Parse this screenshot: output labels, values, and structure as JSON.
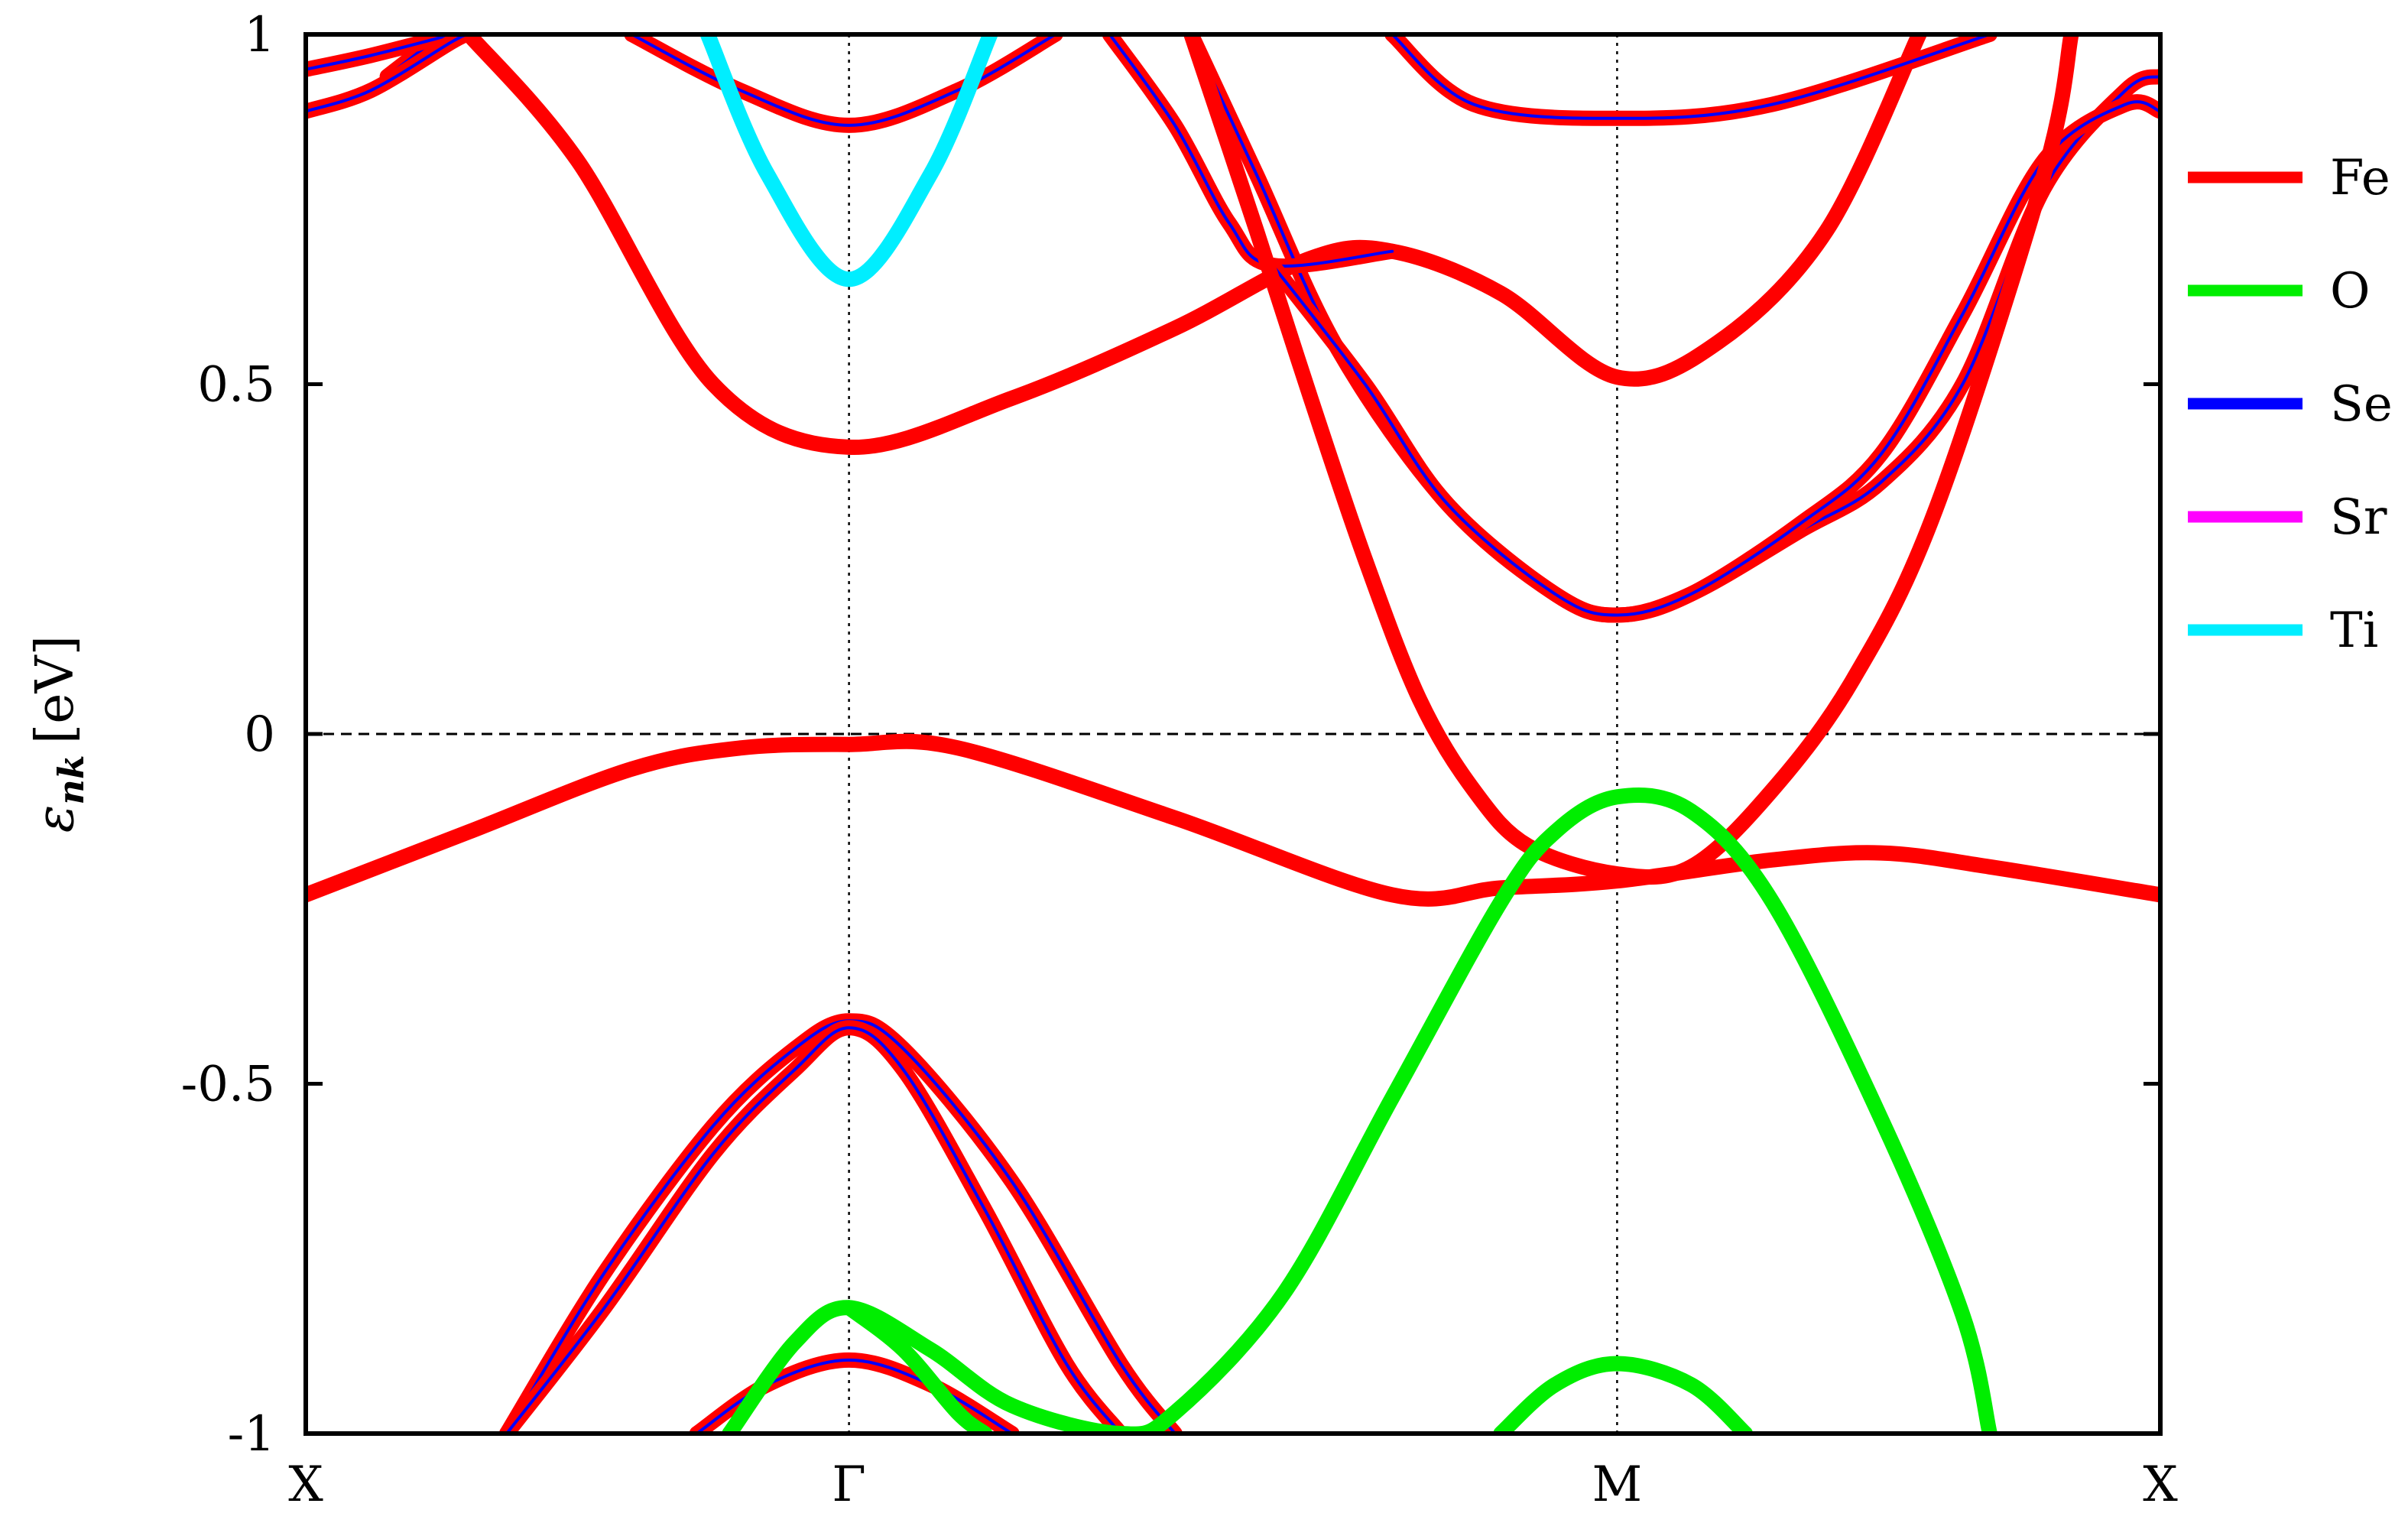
{
  "chart_data": {
    "type": "line",
    "ylabel": "ε_nk [eV]",
    "ylabel_main": "ε",
    "ylabel_sub": "nk",
    "ylabel_unit": "[eV]",
    "xlabel": "",
    "ylim": [
      -1,
      1
    ],
    "xlim": [
      0,
      3.414
    ],
    "x_ticks": [
      {
        "label": "X",
        "x": 0
      },
      {
        "label": "Γ",
        "x": 1
      },
      {
        "label": "M",
        "x": 2.414
      },
      {
        "label": "X",
        "x": 3.414
      }
    ],
    "y_ticks": [
      {
        "label": "1",
        "value": 1
      },
      {
        "label": "0.5",
        "value": 0.5
      },
      {
        "label": "0",
        "value": 0
      },
      {
        "label": "-0.5",
        "value": -0.5
      },
      {
        "label": "-1",
        "value": -1
      }
    ],
    "fermi_level": 0,
    "grid": "vertical dotted lines at high-symmetry points",
    "legend": {
      "placement": "right",
      "entries": [
        {
          "name": "Fe",
          "color": "#ff0000"
        },
        {
          "name": "O",
          "color": "#00ee00"
        },
        {
          "name": "Se",
          "color": "#0000ff"
        },
        {
          "name": "Sr",
          "color": "#ff00ff"
        },
        {
          "name": "Ti",
          "color": "#00eeff"
        }
      ]
    },
    "series": [
      {
        "element": "Fe",
        "color": "#ff0000",
        "inner": "#ff0000",
        "points": [
          [
            0,
            -0.23
          ],
          [
            0.3,
            -0.14
          ],
          [
            0.6,
            -0.05
          ],
          [
            0.8,
            -0.02
          ],
          [
            1,
            -0.015
          ],
          [
            1.2,
            -0.02
          ],
          [
            1.6,
            -0.12
          ],
          [
            2,
            -0.23
          ],
          [
            2.2,
            -0.22
          ],
          [
            2.414,
            -0.21
          ],
          [
            2.7,
            -0.18
          ],
          [
            2.9,
            -0.17
          ],
          [
            3.1,
            -0.19
          ],
          [
            3.414,
            -0.23
          ]
        ]
      },
      {
        "element": "Fe",
        "color": "#ff0000",
        "inner": "#ff0000",
        "points": [
          [
            0.3,
            1.0
          ],
          [
            0.5,
            0.82
          ],
          [
            0.75,
            0.5
          ],
          [
            1,
            0.41
          ],
          [
            1.3,
            0.48
          ],
          [
            1.6,
            0.58
          ],
          [
            1.85,
            0.68
          ],
          [
            2.0,
            0.69
          ],
          [
            2.2,
            0.63
          ],
          [
            2.414,
            0.51
          ],
          [
            2.6,
            0.56
          ],
          [
            2.8,
            0.72
          ],
          [
            2.97,
            1.0
          ]
        ]
      },
      {
        "element": "Fe",
        "color": "#ff0000",
        "inner": "#0000ff",
        "points": [
          [
            0.15,
            0.94
          ],
          [
            0.25,
            1.0
          ]
        ]
      },
      {
        "element": "Fe",
        "color": "#ff0000",
        "inner": "#0000ff",
        "points": [
          [
            0,
            0.95
          ],
          [
            0.12,
            0.97
          ],
          [
            0.27,
            1.0
          ]
        ]
      },
      {
        "element": "Fe",
        "color": "#ff0000",
        "inner": "#0000ff",
        "points": [
          [
            0,
            0.89
          ],
          [
            0.12,
            0.92
          ],
          [
            0.27,
            0.99
          ],
          [
            0.3,
            1.0
          ]
        ]
      },
      {
        "element": "Fe",
        "color": "#ff0000",
        "inner": "#0000ff",
        "points": [
          [
            0.6,
            1.0
          ],
          [
            0.8,
            0.92
          ],
          [
            1,
            0.87
          ],
          [
            1.2,
            0.92
          ],
          [
            1.38,
            1.0
          ]
        ]
      },
      {
        "element": "Fe",
        "color": "#ff0000",
        "inner": "#0000ff",
        "points": [
          [
            2.0,
            1.0
          ],
          [
            2.15,
            0.9
          ],
          [
            2.414,
            0.88
          ],
          [
            2.7,
            0.9
          ],
          [
            3.1,
            1.0
          ]
        ]
      },
      {
        "element": "Fe",
        "color": "#ff0000",
        "inner": "#0000ff",
        "points": [
          [
            1.63,
            1.0
          ],
          [
            1.75,
            0.8
          ],
          [
            1.9,
            0.55
          ],
          [
            2.1,
            0.33
          ],
          [
            2.3,
            0.2
          ],
          [
            2.414,
            0.17
          ],
          [
            2.55,
            0.2
          ],
          [
            2.75,
            0.29
          ],
          [
            2.9,
            0.36
          ],
          [
            3.05,
            0.5
          ],
          [
            3.2,
            0.78
          ],
          [
            3.35,
            0.92
          ],
          [
            3.414,
            0.94
          ]
        ]
      },
      {
        "element": "Fe",
        "color": "#ff0000",
        "inner": "#0000ff",
        "points": [
          [
            1.48,
            1.0
          ],
          [
            1.6,
            0.87
          ],
          [
            1.7,
            0.73
          ],
          [
            1.78,
            0.67
          ],
          [
            2.0,
            0.69
          ]
        ]
      },
      {
        "element": "Fe",
        "color": "#ff0000",
        "inner": "#0000ff",
        "points": [
          [
            1.78,
            0.67
          ],
          [
            1.95,
            0.5
          ],
          [
            2.1,
            0.33
          ],
          [
            2.3,
            0.2
          ],
          [
            2.414,
            0.17
          ],
          [
            2.55,
            0.2
          ],
          [
            2.75,
            0.3
          ],
          [
            2.9,
            0.4
          ],
          [
            3.05,
            0.6
          ],
          [
            3.2,
            0.82
          ],
          [
            3.35,
            0.9
          ],
          [
            3.414,
            0.89
          ]
        ]
      },
      {
        "element": "Fe",
        "color": "#ff0000",
        "inner": "#ff0000",
        "points": [
          [
            1.63,
            1.0
          ],
          [
            1.75,
            0.72
          ],
          [
            1.85,
            0.48
          ],
          [
            1.95,
            0.25
          ],
          [
            2.05,
            0.05
          ],
          [
            2.15,
            -0.08
          ],
          [
            2.25,
            -0.16
          ],
          [
            2.414,
            -0.2
          ],
          [
            2.55,
            -0.19
          ],
          [
            2.7,
            -0.08
          ],
          [
            2.85,
            0.08
          ],
          [
            3.0,
            0.32
          ],
          [
            3.2,
            0.8
          ],
          [
            3.25,
            1.0
          ]
        ]
      },
      {
        "element": "Fe",
        "color": "#ff0000",
        "inner": "#0000ff",
        "points": [
          [
            0.37,
            -1.0
          ],
          [
            0.55,
            -0.77
          ],
          [
            0.75,
            -0.56
          ],
          [
            0.9,
            -0.45
          ],
          [
            1,
            -0.41
          ],
          [
            1.1,
            -0.45
          ],
          [
            1.3,
            -0.64
          ],
          [
            1.5,
            -0.9
          ],
          [
            1.6,
            -1.0
          ]
        ]
      },
      {
        "element": "Fe",
        "color": "#ff0000",
        "inner": "#0000ff",
        "points": [
          [
            0.37,
            -1.0
          ],
          [
            0.55,
            -0.82
          ],
          [
            0.75,
            -0.6
          ],
          [
            0.9,
            -0.48
          ],
          [
            1,
            -0.42
          ],
          [
            1.1,
            -0.48
          ],
          [
            1.25,
            -0.68
          ],
          [
            1.4,
            -0.9
          ],
          [
            1.5,
            -1.0
          ]
        ]
      },
      {
        "element": "Fe",
        "color": "#ff0000",
        "inner": "#0000ff",
        "points": [
          [
            0.72,
            -1.0
          ],
          [
            0.85,
            -0.93
          ],
          [
            1,
            -0.895
          ],
          [
            1.15,
            -0.93
          ],
          [
            1.3,
            -1.0
          ]
        ]
      },
      {
        "element": "O",
        "color": "#00ee00",
        "inner": "#00ee00",
        "points": [
          [
            0.78,
            -1.0
          ],
          [
            0.9,
            -0.87
          ],
          [
            1,
            -0.82
          ],
          [
            1.15,
            -0.88
          ],
          [
            1.3,
            -0.96
          ],
          [
            1.5,
            -1.0
          ],
          [
            1.6,
            -0.97
          ],
          [
            1.8,
            -0.8
          ],
          [
            2.0,
            -0.52
          ],
          [
            2.2,
            -0.24
          ],
          [
            2.3,
            -0.14
          ],
          [
            2.414,
            -0.09
          ],
          [
            2.55,
            -0.11
          ],
          [
            2.7,
            -0.24
          ],
          [
            2.9,
            -0.55
          ],
          [
            3.05,
            -0.83
          ],
          [
            3.1,
            -1.0
          ]
        ]
      },
      {
        "element": "O",
        "color": "#00ee00",
        "inner": "#00ee00",
        "points": [
          [
            1.0,
            -0.82
          ],
          [
            1.1,
            -0.88
          ],
          [
            1.2,
            -0.97
          ],
          [
            1.25,
            -1.0
          ]
        ]
      },
      {
        "element": "O",
        "color": "#00ee00",
        "inner": "#00ee00",
        "points": [
          [
            2.2,
            -1.0
          ],
          [
            2.3,
            -0.93
          ],
          [
            2.414,
            -0.9
          ],
          [
            2.55,
            -0.93
          ],
          [
            2.65,
            -1.0
          ]
        ]
      },
      {
        "element": "Ti",
        "color": "#00eeff",
        "inner": "#00eeff",
        "points": [
          [
            0.74,
            1.0
          ],
          [
            0.85,
            0.8
          ],
          [
            1,
            0.65
          ],
          [
            1.15,
            0.8
          ],
          [
            1.26,
            1.0
          ]
        ]
      }
    ]
  }
}
